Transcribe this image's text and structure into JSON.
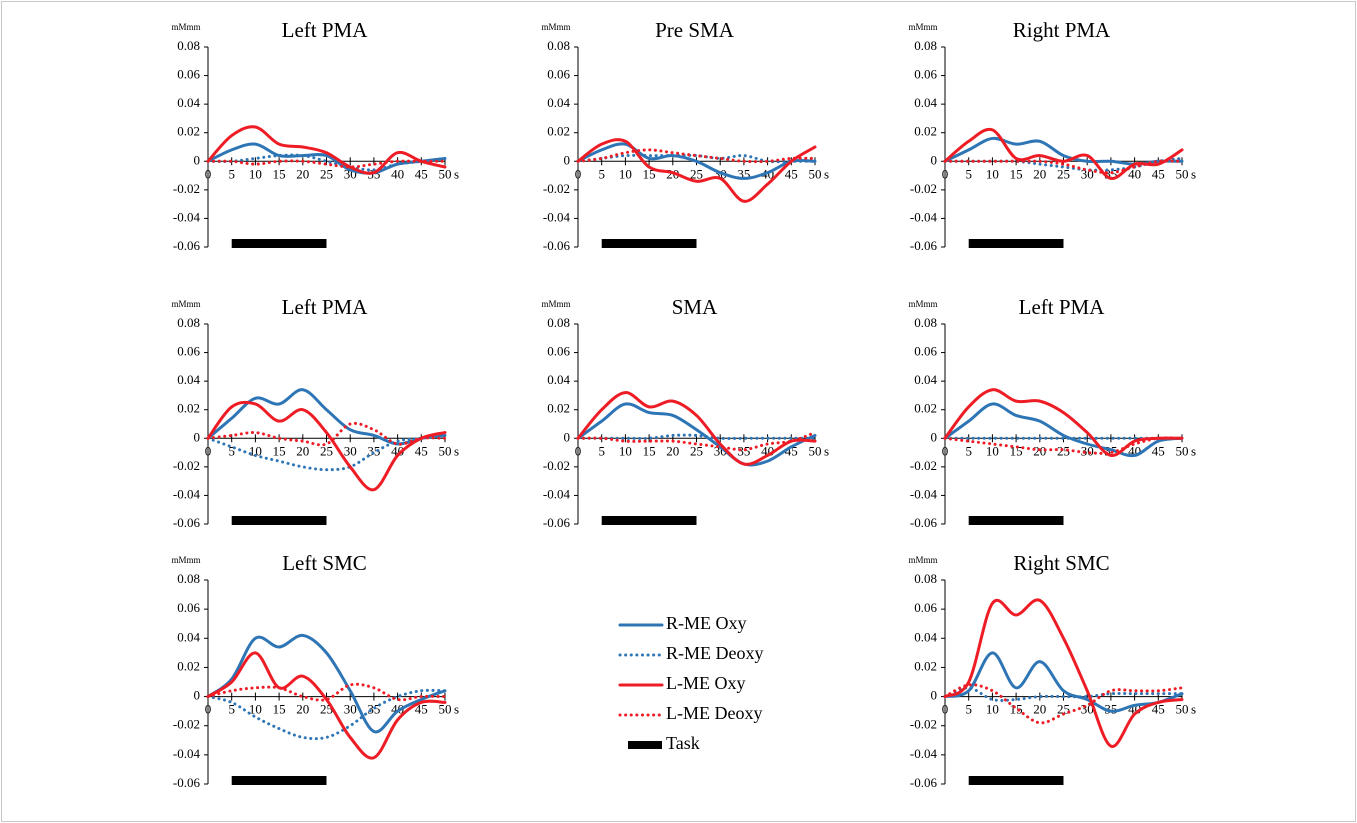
{
  "legend": [
    {
      "name": "R-ME Oxy",
      "color": "#2e75b6",
      "dash": "solid"
    },
    {
      "name": "R-ME Deoxy",
      "color": "#2e75b6",
      "dash": "dotted"
    },
    {
      "name": "L-ME Oxy",
      "color": "#ee1c25",
      "dash": "solid"
    },
    {
      "name": "L-ME Deoxy",
      "color": "#ee1c25",
      "dash": "dotted"
    }
  ],
  "task": {
    "name": "Task",
    "start": 5,
    "end": 25,
    "color": "#000000"
  },
  "chart_data": [
    {
      "type": "line",
      "title": "Left PMA",
      "y_unit": "mMmm",
      "x_unit": "s",
      "x": [
        0,
        5,
        10,
        15,
        20,
        25,
        30,
        35,
        40,
        45,
        50
      ],
      "xlim": [
        0,
        50
      ],
      "xticks": [
        0,
        5,
        10,
        15,
        20,
        25,
        30,
        35,
        40,
        45,
        50
      ],
      "ylim": [
        -0.06,
        0.08
      ],
      "yticks": [
        -0.06,
        -0.04,
        -0.02,
        0,
        0.02,
        0.04,
        0.06,
        0.08
      ],
      "series": [
        {
          "values": [
            0,
            0.008,
            0.012,
            0.004,
            0.004,
            0.004,
            -0.006,
            -0.008,
            -0.002,
            0,
            0.002
          ]
        },
        {
          "values": [
            0,
            0,
            0.002,
            0.004,
            0.004,
            0,
            -0.004,
            -0.006,
            -0.002,
            0,
            0.002
          ]
        },
        {
          "values": [
            0,
            0.018,
            0.024,
            0.012,
            0.01,
            0.006,
            -0.004,
            -0.008,
            0.006,
            0,
            -0.004
          ]
        },
        {
          "values": [
            0,
            0,
            -0.002,
            0,
            0,
            -0.002,
            -0.004,
            -0.002,
            0,
            0,
            0
          ]
        }
      ]
    },
    {
      "type": "line",
      "title": "Pre SMA",
      "y_unit": "mMmm",
      "x_unit": "s",
      "x": [
        0,
        5,
        10,
        15,
        20,
        25,
        30,
        35,
        40,
        45,
        50
      ],
      "xlim": [
        0,
        50
      ],
      "xticks": [
        0,
        5,
        10,
        15,
        20,
        25,
        30,
        35,
        40,
        45,
        50
      ],
      "ylim": [
        -0.06,
        0.08
      ],
      "yticks": [
        -0.06,
        -0.04,
        -0.02,
        0,
        0.02,
        0.04,
        0.06,
        0.08
      ],
      "series": [
        {
          "values": [
            0,
            0.008,
            0.012,
            0.002,
            0.004,
            0,
            -0.008,
            -0.012,
            -0.008,
            0,
            0
          ]
        },
        {
          "values": [
            0,
            0.002,
            0.004,
            0.004,
            0.004,
            0.004,
            0.002,
            0.004,
            0,
            0,
            0
          ]
        },
        {
          "values": [
            0,
            0.012,
            0.014,
            -0.004,
            -0.008,
            -0.014,
            -0.012,
            -0.028,
            -0.016,
            0,
            0.01
          ]
        },
        {
          "values": [
            0,
            0.002,
            0.006,
            0.008,
            0.006,
            0.004,
            0.002,
            0,
            0,
            0.002,
            0.002
          ]
        }
      ]
    },
    {
      "type": "line",
      "title": "Right PMA",
      "y_unit": "mMmm",
      "x_unit": "s",
      "x": [
        0,
        5,
        10,
        15,
        20,
        25,
        30,
        35,
        40,
        45,
        50
      ],
      "xlim": [
        0,
        50
      ],
      "xticks": [
        0,
        5,
        10,
        15,
        20,
        25,
        30,
        35,
        40,
        45,
        50
      ],
      "ylim": [
        -0.06,
        0.08
      ],
      "yticks": [
        -0.06,
        -0.04,
        -0.02,
        0,
        0.02,
        0.04,
        0.06,
        0.08
      ],
      "series": [
        {
          "values": [
            0,
            0.008,
            0.016,
            0.012,
            0.014,
            0.004,
            0,
            0,
            -0.002,
            0,
            0
          ]
        },
        {
          "values": [
            0,
            0,
            0,
            0,
            -0.002,
            -0.004,
            -0.006,
            -0.006,
            -0.004,
            0,
            0.002
          ]
        },
        {
          "values": [
            0,
            0.014,
            0.022,
            0.002,
            0.004,
            0,
            0.004,
            -0.012,
            -0.002,
            -0.002,
            0.008
          ]
        },
        {
          "values": [
            0,
            0,
            0,
            0,
            0,
            -0.002,
            -0.006,
            -0.008,
            -0.004,
            0,
            0
          ]
        }
      ]
    },
    {
      "type": "line",
      "title": "Left PMA",
      "y_unit": "mMmm",
      "x_unit": "s",
      "x": [
        0,
        5,
        10,
        15,
        20,
        25,
        30,
        35,
        40,
        45,
        50
      ],
      "xlim": [
        0,
        50
      ],
      "xticks": [
        0,
        5,
        10,
        15,
        20,
        25,
        30,
        35,
        40,
        45,
        50
      ],
      "ylim": [
        -0.06,
        0.08
      ],
      "yticks": [
        -0.06,
        -0.04,
        -0.02,
        0,
        0.02,
        0.04,
        0.06,
        0.08
      ],
      "series": [
        {
          "values": [
            0,
            0.014,
            0.028,
            0.024,
            0.034,
            0.02,
            0.006,
            0.002,
            -0.004,
            0,
            0.002
          ]
        },
        {
          "values": [
            0,
            -0.006,
            -0.012,
            -0.016,
            -0.02,
            -0.022,
            -0.02,
            -0.01,
            -0.002,
            0,
            0.002
          ]
        },
        {
          "values": [
            0,
            0.022,
            0.024,
            0.012,
            0.02,
            0.004,
            -0.02,
            -0.036,
            -0.012,
            0,
            0.004
          ]
        },
        {
          "values": [
            0,
            0.002,
            0.004,
            0,
            -0.002,
            -0.004,
            0.01,
            0.006,
            -0.004,
            0,
            0
          ]
        }
      ]
    },
    {
      "type": "line",
      "title": "SMA",
      "y_unit": "mMmm",
      "x_unit": "s",
      "x": [
        0,
        5,
        10,
        15,
        20,
        25,
        30,
        35,
        40,
        45,
        50
      ],
      "xlim": [
        0,
        50
      ],
      "xticks": [
        0,
        5,
        10,
        15,
        20,
        25,
        30,
        35,
        40,
        45,
        50
      ],
      "ylim": [
        -0.06,
        0.08
      ],
      "yticks": [
        -0.06,
        -0.04,
        -0.02,
        0,
        0.02,
        0.04,
        0.06,
        0.08
      ],
      "series": [
        {
          "values": [
            0,
            0.012,
            0.024,
            0.018,
            0.016,
            0.006,
            -0.006,
            -0.018,
            -0.016,
            -0.006,
            0.002
          ]
        },
        {
          "values": [
            0,
            0,
            0,
            0,
            0.002,
            0.002,
            0,
            0,
            0,
            0,
            0
          ]
        },
        {
          "values": [
            0,
            0.02,
            0.032,
            0.022,
            0.026,
            0.016,
            -0.004,
            -0.018,
            -0.012,
            -0.002,
            -0.002
          ]
        },
        {
          "values": [
            0,
            0,
            -0.002,
            -0.002,
            -0.002,
            -0.004,
            -0.006,
            -0.008,
            -0.004,
            -0.002,
            0.004
          ]
        }
      ]
    },
    {
      "type": "line",
      "title": "Left PMA",
      "y_unit": "mMmm",
      "x_unit": "s",
      "x": [
        0,
        5,
        10,
        15,
        20,
        25,
        30,
        35,
        40,
        45,
        50
      ],
      "xlim": [
        0,
        50
      ],
      "xticks": [
        0,
        5,
        10,
        15,
        20,
        25,
        30,
        35,
        40,
        45,
        50
      ],
      "ylim": [
        -0.06,
        0.08
      ],
      "yticks": [
        -0.06,
        -0.04,
        -0.02,
        0,
        0.02,
        0.04,
        0.06,
        0.08
      ],
      "series": [
        {
          "values": [
            0,
            0.012,
            0.024,
            0.016,
            0.012,
            0.002,
            -0.004,
            -0.008,
            -0.012,
            -0.002,
            0
          ]
        },
        {
          "values": [
            0,
            0,
            0,
            0,
            0,
            0,
            0,
            0,
            0,
            0,
            0
          ]
        },
        {
          "values": [
            0,
            0.022,
            0.034,
            0.026,
            0.026,
            0.018,
            0.004,
            -0.012,
            -0.002,
            0,
            0
          ]
        },
        {
          "values": [
            0,
            -0.002,
            -0.004,
            -0.006,
            -0.008,
            -0.008,
            -0.01,
            -0.01,
            -0.004,
            0,
            0
          ]
        }
      ]
    },
    {
      "type": "line",
      "title": "Left SMC",
      "y_unit": "mMmm",
      "x_unit": "s",
      "x": [
        0,
        5,
        10,
        15,
        20,
        25,
        30,
        35,
        40,
        45,
        50
      ],
      "xlim": [
        0,
        50
      ],
      "xticks": [
        0,
        5,
        10,
        15,
        20,
        25,
        30,
        35,
        40,
        45,
        50
      ],
      "ylim": [
        -0.06,
        0.08
      ],
      "yticks": [
        -0.06,
        -0.04,
        -0.02,
        0,
        0.02,
        0.04,
        0.06,
        0.08
      ],
      "series": [
        {
          "values": [
            0,
            0.012,
            0.04,
            0.034,
            0.042,
            0.03,
            0.004,
            -0.024,
            -0.01,
            -0.002,
            0.004
          ]
        },
        {
          "values": [
            0,
            -0.004,
            -0.014,
            -0.022,
            -0.028,
            -0.028,
            -0.02,
            -0.008,
            0,
            0.004,
            0.004
          ]
        },
        {
          "values": [
            0,
            0.01,
            0.03,
            0.006,
            0.014,
            -0.002,
            -0.028,
            -0.042,
            -0.016,
            -0.004,
            -0.004
          ]
        },
        {
          "values": [
            0,
            0.004,
            0.006,
            0.006,
            0,
            -0.002,
            0.008,
            0.006,
            -0.002,
            0,
            0
          ]
        }
      ]
    },
    {
      "type": "line",
      "title": "Right SMC",
      "y_unit": "mMmm",
      "x_unit": "s",
      "x": [
        0,
        5,
        10,
        15,
        20,
        25,
        30,
        35,
        40,
        45,
        50
      ],
      "xlim": [
        0,
        50
      ],
      "xticks": [
        0,
        5,
        10,
        15,
        20,
        25,
        30,
        35,
        40,
        45,
        50
      ],
      "ylim": [
        -0.06,
        0.08
      ],
      "yticks": [
        -0.06,
        -0.04,
        -0.02,
        0,
        0.02,
        0.04,
        0.06,
        0.08
      ],
      "series": [
        {
          "values": [
            0,
            0.004,
            0.03,
            0.006,
            0.024,
            0.004,
            -0.002,
            -0.01,
            -0.006,
            -0.004,
            0.002
          ]
        },
        {
          "values": [
            0,
            0.006,
            -0.002,
            -0.002,
            0,
            0,
            0,
            0.002,
            0.002,
            0.002,
            0.002
          ]
        },
        {
          "values": [
            0,
            0.01,
            0.064,
            0.056,
            0.066,
            0.04,
            0.004,
            -0.034,
            -0.012,
            -0.004,
            -0.002
          ]
        },
        {
          "values": [
            0,
            0.008,
            0.004,
            -0.008,
            -0.018,
            -0.012,
            -0.006,
            0.004,
            0.004,
            0.004,
            0.006
          ]
        }
      ]
    }
  ]
}
